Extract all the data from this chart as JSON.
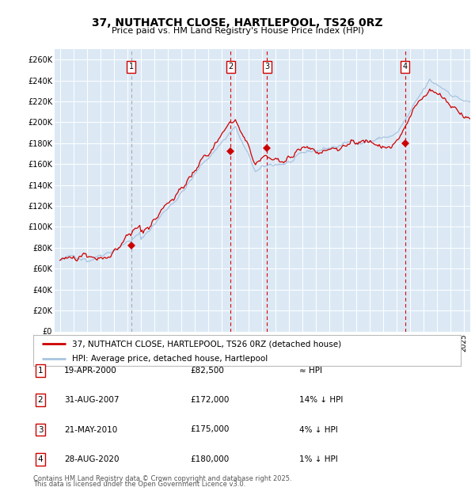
{
  "title": "37, NUTHATCH CLOSE, HARTLEPOOL, TS26 0RZ",
  "subtitle": "Price paid vs. HM Land Registry's House Price Index (HPI)",
  "ylabel_ticks": [
    "£0",
    "£20K",
    "£40K",
    "£60K",
    "£80K",
    "£100K",
    "£120K",
    "£140K",
    "£160K",
    "£180K",
    "£200K",
    "£220K",
    "£240K",
    "£260K"
  ],
  "ytick_values": [
    0,
    20000,
    40000,
    60000,
    80000,
    100000,
    120000,
    140000,
    160000,
    180000,
    200000,
    220000,
    240000,
    260000
  ],
  "ylim": [
    0,
    270000
  ],
  "xlim_start": 1994.6,
  "xlim_end": 2025.5,
  "background_color": "#dce9f5",
  "grid_color": "#ffffff",
  "hpi_line_color": "#a8c4e0",
  "price_line_color": "#cc0000",
  "sale_marker_color": "#cc0000",
  "vline_color_grey": "#aaaaaa",
  "vline_color_red": "#dd0000",
  "purchases": [
    {
      "num": 1,
      "date": "19-APR-2000",
      "price": 82500,
      "year": 2000.3,
      "label": "≈ HPI",
      "vline_style": "grey"
    },
    {
      "num": 2,
      "date": "31-AUG-2007",
      "price": 172000,
      "year": 2007.67,
      "label": "14% ↓ HPI",
      "vline_style": "red"
    },
    {
      "num": 3,
      "date": "21-MAY-2010",
      "price": 175000,
      "year": 2010.38,
      "label": "4% ↓ HPI",
      "vline_style": "red"
    },
    {
      "num": 4,
      "date": "28-AUG-2020",
      "price": 180000,
      "year": 2020.67,
      "label": "1% ↓ HPI",
      "vline_style": "red"
    }
  ],
  "legend_line1": "37, NUTHATCH CLOSE, HARTLEPOOL, TS26 0RZ (detached house)",
  "legend_line2": "HPI: Average price, detached house, Hartlepool",
  "footer1": "Contains HM Land Registry data © Crown copyright and database right 2025.",
  "footer2": "This data is licensed under the Open Government Licence v3.0.",
  "table_rows": [
    {
      "num": 1,
      "date": "19-APR-2000",
      "price": "£82,500",
      "rel": "≈ HPI"
    },
    {
      "num": 2,
      "date": "31-AUG-2007",
      "price": "£172,000",
      "rel": "14% ↓ HPI"
    },
    {
      "num": 3,
      "date": "21-MAY-2010",
      "price": "£175,000",
      "rel": "4% ↓ HPI"
    },
    {
      "num": 4,
      "date": "28-AUG-2020",
      "price": "£180,000",
      "rel": "1% ↓ HPI"
    }
  ]
}
